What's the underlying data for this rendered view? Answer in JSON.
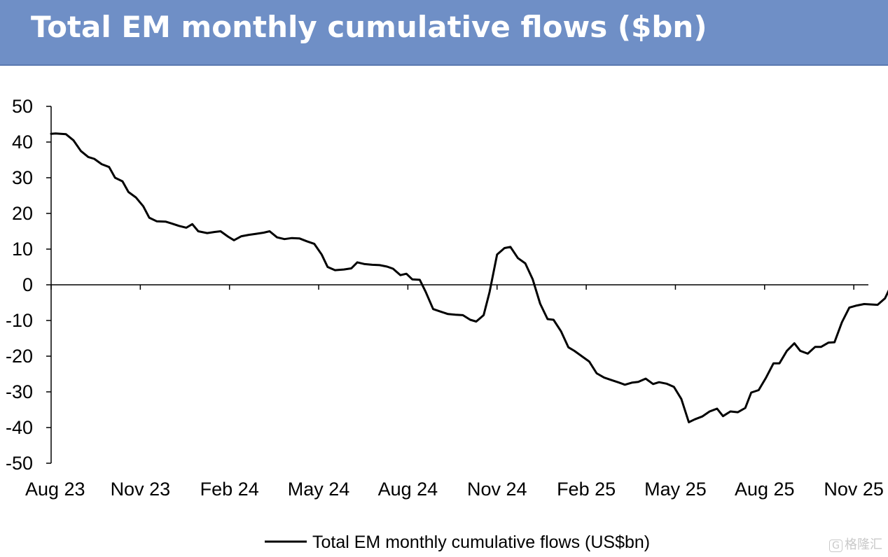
{
  "header": {
    "title": "Total EM monthly cumulative flows ($bn)"
  },
  "colors": {
    "header_bg": "#6f8fc6",
    "series_line": "#000000",
    "axis": "#000000"
  },
  "watermark": {
    "text": "格隆汇",
    "logo_glyph": "G"
  },
  "chart_data": {
    "type": "line",
    "title": "Total EM monthly cumulative flows ($bn)",
    "xlabel": "",
    "ylabel": "",
    "ylim": [
      -50,
      50
    ],
    "yticks": [
      50,
      40,
      30,
      20,
      10,
      0,
      -10,
      -20,
      -30,
      -40,
      -50
    ],
    "x_unit": "months since Aug 23",
    "xlim": [
      0,
      27.3
    ],
    "xticks": [
      {
        "x": 0,
        "label": "Aug 23"
      },
      {
        "x": 3,
        "label": "Nov 23"
      },
      {
        "x": 6,
        "label": "Feb 24"
      },
      {
        "x": 9,
        "label": "May 24"
      },
      {
        "x": 12,
        "label": "Aug 24"
      },
      {
        "x": 15,
        "label": "Nov 24"
      },
      {
        "x": 18,
        "label": "Feb 25"
      },
      {
        "x": 21,
        "label": "May 25"
      },
      {
        "x": 24,
        "label": "Aug 25"
      },
      {
        "x": 27,
        "label": "Nov 25"
      }
    ],
    "grid": false,
    "legend_position": "bottom-center",
    "series": [
      {
        "name": "Total EM monthly cumulative flows (US$bn)",
        "points": [
          [
            0,
            42.3
          ],
          [
            0.15,
            42.4
          ],
          [
            0.5,
            42.2
          ],
          [
            0.75,
            40.5
          ],
          [
            1.0,
            37.5
          ],
          [
            1.25,
            35.8
          ],
          [
            1.45,
            35.3
          ],
          [
            1.7,
            33.8
          ],
          [
            1.95,
            33.0
          ],
          [
            2.15,
            30.0
          ],
          [
            2.4,
            29.0
          ],
          [
            2.6,
            26.0
          ],
          [
            2.85,
            24.5
          ],
          [
            3.1,
            22.0
          ],
          [
            3.3,
            18.8
          ],
          [
            3.55,
            17.8
          ],
          [
            3.85,
            17.7
          ],
          [
            4.05,
            17.2
          ],
          [
            4.3,
            16.5
          ],
          [
            4.55,
            16.0
          ],
          [
            4.75,
            17.0
          ],
          [
            4.95,
            15.0
          ],
          [
            5.25,
            14.5
          ],
          [
            5.5,
            14.8
          ],
          [
            5.7,
            15.0
          ],
          [
            5.95,
            13.5
          ],
          [
            6.15,
            12.5
          ],
          [
            6.4,
            13.6
          ],
          [
            6.65,
            14.0
          ],
          [
            6.9,
            14.3
          ],
          [
            7.15,
            14.6
          ],
          [
            7.35,
            15.0
          ],
          [
            7.6,
            13.3
          ],
          [
            7.85,
            12.8
          ],
          [
            8.1,
            13.1
          ],
          [
            8.35,
            13.0
          ],
          [
            8.6,
            12.2
          ],
          [
            8.85,
            11.5
          ],
          [
            9.1,
            8.5
          ],
          [
            9.3,
            5.0
          ],
          [
            9.55,
            4.1
          ],
          [
            9.85,
            4.3
          ],
          [
            10.1,
            4.6
          ],
          [
            10.3,
            6.3
          ],
          [
            10.55,
            5.8
          ],
          [
            10.8,
            5.6
          ],
          [
            11.05,
            5.5
          ],
          [
            11.3,
            5.1
          ],
          [
            11.5,
            4.5
          ],
          [
            11.75,
            2.7
          ],
          [
            11.95,
            3.1
          ],
          [
            12.15,
            1.5
          ],
          [
            12.4,
            1.4
          ],
          [
            12.6,
            -2.0
          ],
          [
            12.85,
            -6.8
          ],
          [
            13.1,
            -7.5
          ],
          [
            13.35,
            -8.2
          ],
          [
            13.6,
            -8.4
          ],
          [
            13.85,
            -8.5
          ],
          [
            14.1,
            -9.8
          ],
          [
            14.3,
            -10.3
          ],
          [
            14.55,
            -8.5
          ],
          [
            14.75,
            -2.0
          ],
          [
            15.0,
            8.5
          ],
          [
            15.25,
            10.3
          ],
          [
            15.45,
            10.6
          ],
          [
            15.7,
            7.5
          ],
          [
            15.95,
            6.0
          ],
          [
            16.2,
            1.5
          ],
          [
            16.45,
            -5.3
          ],
          [
            16.7,
            -9.6
          ],
          [
            16.9,
            -9.8
          ],
          [
            17.15,
            -13.0
          ],
          [
            17.4,
            -17.5
          ],
          [
            17.6,
            -18.5
          ],
          [
            17.85,
            -20.0
          ],
          [
            18.1,
            -21.5
          ],
          [
            18.35,
            -24.8
          ],
          [
            18.6,
            -26.0
          ],
          [
            18.85,
            -26.7
          ],
          [
            19.1,
            -27.4
          ],
          [
            19.3,
            -28.0
          ],
          [
            19.55,
            -27.4
          ],
          [
            19.75,
            -27.2
          ],
          [
            20.0,
            -26.3
          ],
          [
            20.25,
            -27.8
          ],
          [
            20.45,
            -27.3
          ],
          [
            20.7,
            -27.7
          ],
          [
            20.95,
            -28.6
          ],
          [
            21.2,
            -32.0
          ],
          [
            21.45,
            -38.5
          ],
          [
            21.65,
            -37.7
          ],
          [
            21.9,
            -36.9
          ],
          [
            22.15,
            -35.5
          ],
          [
            22.4,
            -34.7
          ],
          [
            22.6,
            -36.8
          ],
          [
            22.85,
            -35.5
          ],
          [
            23.1,
            -35.7
          ],
          [
            23.35,
            -34.5
          ],
          [
            23.55,
            -30.2
          ],
          [
            23.8,
            -29.5
          ],
          [
            24.05,
            -26.0
          ],
          [
            24.3,
            -22.0
          ],
          [
            24.5,
            -22.0
          ],
          [
            24.75,
            -18.5
          ],
          [
            25.0,
            -16.4
          ],
          [
            25.2,
            -18.5
          ],
          [
            25.45,
            -19.3
          ],
          [
            25.7,
            -17.4
          ],
          [
            25.9,
            -17.4
          ],
          [
            26.15,
            -16.2
          ],
          [
            26.35,
            -16.1
          ],
          [
            26.6,
            -10.5
          ],
          [
            26.85,
            -6.4
          ],
          [
            27.1,
            -5.8
          ],
          [
            27.35,
            -5.4
          ],
          [
            27.55,
            -5.5
          ],
          [
            27.8,
            -5.6
          ],
          [
            28.05,
            -3.8
          ],
          [
            28.25,
            -0.3
          ]
        ]
      }
    ]
  }
}
